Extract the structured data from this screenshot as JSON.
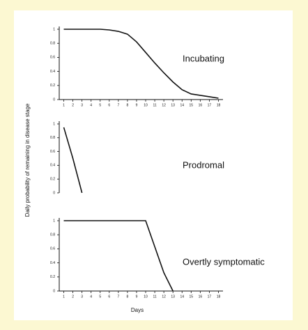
{
  "chart_data": [
    {
      "type": "line",
      "title": "Incubating",
      "x": [
        1,
        2,
        3,
        4,
        5,
        6,
        7,
        8,
        9,
        10,
        11,
        12,
        13,
        14,
        15,
        16,
        17,
        18
      ],
      "values": [
        1,
        1,
        1,
        1,
        1,
        0.99,
        0.97,
        0.93,
        0.82,
        0.67,
        0.52,
        0.38,
        0.25,
        0.14,
        0.08,
        0.06,
        0.04,
        0.02
      ],
      "color": "#111111",
      "xlim": [
        0.5,
        18.5
      ],
      "ylim": [
        0,
        1
      ],
      "xticks": [
        1,
        2,
        3,
        4,
        5,
        6,
        7,
        8,
        9,
        10,
        11,
        12,
        13,
        14,
        15,
        16,
        17,
        18
      ],
      "yticks": [
        0,
        0.2,
        0.4,
        0.6,
        0.8,
        1
      ]
    },
    {
      "type": "line",
      "title": "Prodromal",
      "ylabel": "Daily probability of remaining in disease stage",
      "x": [
        1,
        2,
        3
      ],
      "values": [
        0.95,
        0.5,
        0
      ],
      "color": "#111111",
      "xlim": [
        0.5,
        18.5
      ],
      "ylim": [
        0,
        1
      ],
      "yticks": [
        0,
        0.2,
        0.4,
        0.6,
        0.8,
        1
      ]
    },
    {
      "type": "line",
      "title": "Overtly symptomatic",
      "xlabel": "Days",
      "x": [
        1,
        2,
        3,
        4,
        5,
        6,
        7,
        8,
        9,
        10,
        11,
        12,
        13
      ],
      "values": [
        1,
        1,
        1,
        1,
        1,
        1,
        1,
        1,
        1,
        1,
        0.63,
        0.26,
        0
      ],
      "color": "#111111",
      "xlim": [
        0.5,
        18.5
      ],
      "ylim": [
        0,
        1
      ],
      "xticks": [
        1,
        2,
        3,
        4,
        5,
        6,
        7,
        8,
        9,
        10,
        11,
        12,
        13,
        14,
        15,
        16,
        17,
        18
      ],
      "yticks": [
        0,
        0.2,
        0.4,
        0.6,
        0.8,
        1
      ]
    }
  ]
}
